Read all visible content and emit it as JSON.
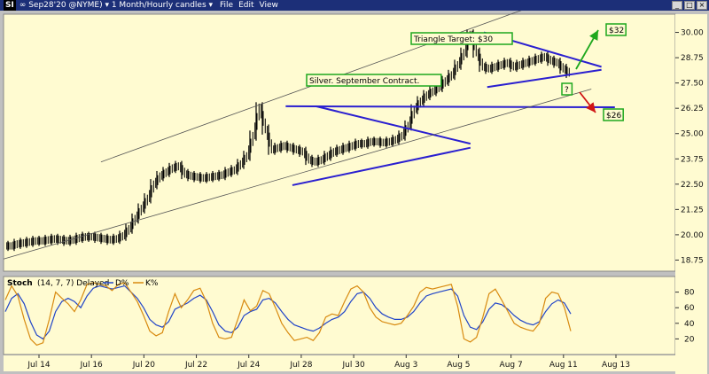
{
  "window": {
    "symbol_badge": "SI",
    "title": "∞ Sep28'20 @NYME) ▾  1 Month/Hourly candles ▾",
    "menus": [
      "File",
      "Edit",
      "View"
    ],
    "controls": [
      "_",
      "□",
      "×"
    ]
  },
  "chart_data": [
    {
      "type": "candlestick",
      "title": "",
      "interval": "Hourly",
      "x_ticks": [
        "Jul 14",
        "Jul 16",
        "Jul 20",
        "Jul 22",
        "Jul 24",
        "Jul 28",
        "Jul 30",
        "Aug 3",
        "Aug 5",
        "Aug 7",
        "Aug 11",
        "Aug 13"
      ],
      "y_ticks": [
        18.75,
        20.0,
        21.25,
        22.5,
        23.75,
        25.0,
        26.25,
        27.5,
        28.75,
        30.0
      ],
      "ylim": [
        18.2,
        30.9
      ],
      "series": [
        {
          "name": "",
          "values": [
            19.45,
            19.55,
            19.6,
            19.65,
            19.7,
            19.7,
            19.75,
            19.8,
            19.75,
            19.7,
            19.75,
            19.85,
            19.9,
            19.9,
            19.85,
            19.8,
            19.75,
            19.8,
            19.95,
            20.3,
            20.8,
            21.3,
            21.8,
            22.5,
            22.9,
            23.1,
            23.3,
            23.4,
            23.0,
            22.9,
            22.85,
            22.8,
            22.85,
            22.9,
            22.95,
            23.1,
            23.2,
            23.5,
            23.9,
            24.9,
            26.3,
            25.2,
            24.2,
            24.3,
            24.4,
            24.3,
            24.2,
            24.1,
            23.7,
            23.6,
            23.7,
            23.9,
            24.1,
            24.2,
            24.3,
            24.4,
            24.5,
            24.5,
            24.6,
            24.6,
            24.55,
            24.6,
            24.7,
            24.9,
            25.4,
            26.2,
            26.6,
            26.9,
            27.1,
            27.3,
            27.6,
            27.9,
            28.4,
            29.0,
            29.9,
            29.0,
            28.3,
            28.2,
            28.3,
            28.4,
            28.5,
            28.3,
            28.4,
            28.5,
            28.6,
            28.7,
            28.8,
            28.6,
            28.5,
            28.2,
            28.0
          ]
        }
      ],
      "annotations": [
        {
          "type": "label",
          "text": "Silver. September Contract."
        },
        {
          "type": "label",
          "text": "Triangle Target: $30"
        },
        {
          "type": "label",
          "text": "$32"
        },
        {
          "type": "label",
          "text": "$26"
        },
        {
          "type": "label",
          "text": "?"
        }
      ],
      "trendlines": [
        {
          "name": "symmetrical triangle upper",
          "from": [
            0.465,
            26.35
          ],
          "to": [
            0.695,
            24.5
          ]
        },
        {
          "name": "symmetrical triangle lower",
          "from": [
            0.43,
            22.45
          ],
          "to": [
            0.695,
            24.3
          ]
        },
        {
          "name": "flag upper",
          "from": [
            0.715,
            30.0
          ],
          "to": [
            0.89,
            28.3
          ]
        },
        {
          "name": "flag lower",
          "from": [
            0.72,
            27.3
          ],
          "to": [
            0.89,
            28.15
          ]
        },
        {
          "name": "support line",
          "from": [
            0.42,
            26.35
          ],
          "to": [
            0.91,
            26.3
          ]
        },
        {
          "name": "channel top",
          "from": [
            0.145,
            23.6
          ],
          "to": [
            0.78,
            31.2
          ]
        },
        {
          "name": "channel bottom",
          "from": [
            0.0,
            18.8
          ],
          "to": [
            0.875,
            27.2
          ]
        }
      ]
    },
    {
      "type": "line",
      "title": "Stoch",
      "parameters": "(14, 7, 7) Delayed",
      "legend": [
        "D%",
        "K%"
      ],
      "y_ticks": [
        20,
        40,
        60,
        80
      ],
      "ylim": [
        0,
        100
      ],
      "series": [
        {
          "name": "D%",
          "color": "#2044c8",
          "values": [
            55,
            72,
            78,
            65,
            42,
            25,
            20,
            30,
            55,
            68,
            72,
            68,
            60,
            75,
            85,
            88,
            86,
            84,
            86,
            88,
            80,
            72,
            60,
            45,
            38,
            35,
            42,
            58,
            62,
            66,
            72,
            76,
            70,
            55,
            38,
            30,
            28,
            35,
            50,
            55,
            58,
            70,
            72,
            66,
            55,
            45,
            38,
            35,
            32,
            30,
            34,
            40,
            45,
            48,
            55,
            68,
            78,
            80,
            72,
            60,
            52,
            48,
            45,
            45,
            48,
            55,
            66,
            75,
            78,
            80,
            82,
            84,
            75,
            50,
            35,
            32,
            42,
            58,
            66,
            64,
            58,
            50,
            44,
            40,
            38,
            42,
            55,
            65,
            70,
            66,
            52
          ]
        },
        {
          "name": "K%",
          "color": "#d88a10",
          "values": [
            70,
            88,
            75,
            45,
            20,
            12,
            15,
            45,
            80,
            72,
            65,
            55,
            70,
            90,
            92,
            90,
            88,
            82,
            90,
            92,
            80,
            68,
            50,
            30,
            24,
            28,
            55,
            78,
            60,
            70,
            82,
            85,
            68,
            40,
            22,
            20,
            22,
            45,
            70,
            56,
            62,
            82,
            78,
            60,
            40,
            28,
            18,
            20,
            22,
            18,
            28,
            48,
            52,
            50,
            68,
            84,
            88,
            80,
            60,
            48,
            42,
            40,
            38,
            40,
            50,
            62,
            80,
            86,
            84,
            86,
            88,
            90,
            62,
            20,
            16,
            22,
            48,
            78,
            84,
            70,
            55,
            40,
            35,
            32,
            30,
            40,
            72,
            80,
            78,
            60,
            30
          ]
        }
      ]
    }
  ]
}
